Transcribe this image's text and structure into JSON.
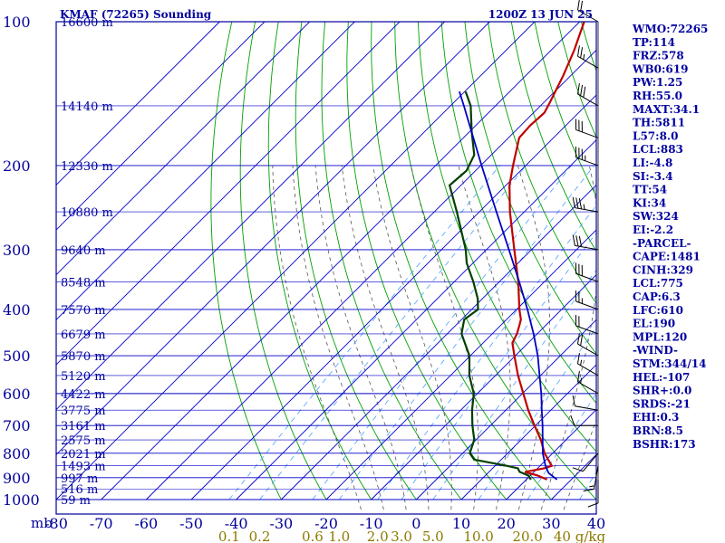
{
  "header": {
    "station": "KMAF (72265) Sounding",
    "time": "1200Z 13 JUN 25"
  },
  "colors": {
    "frame": "#00009c",
    "isobar": "#0000c8",
    "isotherm": "#0000c8",
    "dry_adiabat": "#00a000",
    "moist_adiabat": "#555555",
    "mixing_ratio": "#4aa0ff",
    "temperature": "#c00000",
    "dewpoint": "#004000",
    "parcel": "#0000c0",
    "text": "#0000a0",
    "mixing_label": "#8a7a00",
    "wind": "#000000"
  },
  "indices": [
    "WMO:72265",
    "TP:114",
    "FRZ:578",
    "WB0:619",
    "PW:1.25",
    "RH:55.0",
    "MAXT:34.1",
    "TH:5811",
    "L57:8.0",
    "LCL:883",
    "LI:-4.8",
    "SI:-3.4",
    "TT:54",
    "KI:34",
    "SW:324",
    "EI:-2.2",
    "-PARCEL-",
    "CAPE:1481",
    "CINH:329",
    "LCL:775",
    "CAP:6.3",
    "LFC:610",
    "EL:190",
    "MPL:120",
    "-WIND-",
    "STM:344/14",
    "HEL:-107",
    "SHR+:0.0",
    "SRDS:-21",
    "EHI:0.3",
    "BRN:8.5",
    "BSHR:173"
  ],
  "chart_data": {
    "type": "line",
    "title": "KMAF (72265) Sounding",
    "subtitle": "1200Z 13 JUN 25",
    "ylabel": "mb",
    "pressure_axis": {
      "scale": "log",
      "ylim": [
        1000,
        100
      ],
      "ticks": [
        100,
        200,
        300,
        400,
        500,
        600,
        700,
        800,
        900,
        1000
      ]
    },
    "temperature_axis": {
      "xlim": [
        -80,
        40
      ],
      "ticks": [
        -80,
        -70,
        -60,
        -50,
        -40,
        -30,
        -20,
        -10,
        0,
        10,
        20,
        30,
        40
      ]
    },
    "mixing_ratio_labels": [
      "0.1",
      "0.2",
      "0.6",
      "1.0",
      "2.0",
      "3.0",
      "5.0",
      "10.0",
      "20.0",
      "40 g/kg"
    ],
    "mixing_ratio_values": [
      0.1,
      0.2,
      0.6,
      1.0,
      2.0,
      3.0,
      5.0,
      10.0,
      20.0,
      40.0
    ],
    "height_labels": [
      {
        "p": 100,
        "text": "16600 m"
      },
      {
        "p": 150,
        "text": "14140 m"
      },
      {
        "p": 200,
        "text": "12330 m"
      },
      {
        "p": 250,
        "text": "10880 m"
      },
      {
        "p": 300,
        "text": "9640 m"
      },
      {
        "p": 350,
        "text": "8548 m"
      },
      {
        "p": 400,
        "text": "7570 m"
      },
      {
        "p": 450,
        "text": "6679 m"
      },
      {
        "p": 500,
        "text": "5870 m"
      },
      {
        "p": 550,
        "text": "5120 m"
      },
      {
        "p": 600,
        "text": "4422 m"
      },
      {
        "p": 650,
        "text": "3775 m"
      },
      {
        "p": 700,
        "text": "3161 m"
      },
      {
        "p": 750,
        "text": "2575 m"
      },
      {
        "p": 800,
        "text": "2021 m"
      },
      {
        "p": 850,
        "text": "1493 m"
      },
      {
        "p": 900,
        "text": "997 m"
      },
      {
        "p": 950,
        "text": "516 m"
      },
      {
        "p": 1000,
        "text": "59 m"
      }
    ],
    "dry_adiabats_C": [
      -30,
      -20,
      -10,
      0,
      10,
      20,
      30,
      40,
      50,
      60,
      70,
      80,
      90,
      100,
      110,
      120,
      130,
      140,
      150,
      160,
      170
    ],
    "moist_adiabats_C": [
      -10,
      -5,
      0,
      5,
      10,
      15,
      20,
      25,
      30,
      35
    ],
    "series": [
      {
        "name": "temperature",
        "points": [
          {
            "p": 908,
            "t": 24.6
          },
          {
            "p": 890,
            "t": 21.5
          },
          {
            "p": 875,
            "t": 18.0
          },
          {
            "p": 860,
            "t": 21.5
          },
          {
            "p": 850,
            "t": 22.6
          },
          {
            "p": 800,
            "t": 18.2
          },
          {
            "p": 750,
            "t": 14.4
          },
          {
            "p": 700,
            "t": 9.8
          },
          {
            "p": 650,
            "t": 5.0
          },
          {
            "p": 600,
            "t": 0.2
          },
          {
            "p": 550,
            "t": -5.0
          },
          {
            "p": 500,
            "t": -10.2
          },
          {
            "p": 470,
            "t": -13.5
          },
          {
            "p": 450,
            "t": -14.5
          },
          {
            "p": 435,
            "t": -15.6
          },
          {
            "p": 420,
            "t": -16.8
          },
          {
            "p": 400,
            "t": -19.4
          },
          {
            "p": 350,
            "t": -25.8
          },
          {
            "p": 300,
            "t": -33.8
          },
          {
            "p": 250,
            "t": -43.2
          },
          {
            "p": 220,
            "t": -49.2
          },
          {
            "p": 200,
            "t": -52.8
          },
          {
            "p": 175,
            "t": -57.6
          },
          {
            "p": 165,
            "t": -57.9
          },
          {
            "p": 155,
            "t": -57.6
          },
          {
            "p": 148,
            "t": -58.6
          },
          {
            "p": 130,
            "t": -61.6
          },
          {
            "p": 115,
            "t": -64.8
          },
          {
            "p": 100,
            "t": -69.0
          }
        ]
      },
      {
        "name": "dewpoint",
        "points": [
          {
            "p": 908,
            "t": 21.0
          },
          {
            "p": 890,
            "t": 19.5
          },
          {
            "p": 875,
            "t": 16.8
          },
          {
            "p": 860,
            "t": 15.6
          },
          {
            "p": 850,
            "t": 12.6
          },
          {
            "p": 825,
            "t": 4.0
          },
          {
            "p": 800,
            "t": 1.6
          },
          {
            "p": 750,
            "t": -0.4
          },
          {
            "p": 700,
            "t": -4.0
          },
          {
            "p": 650,
            "t": -7.5
          },
          {
            "p": 600,
            "t": -10.8
          },
          {
            "p": 550,
            "t": -15.8
          },
          {
            "p": 500,
            "t": -20.2
          },
          {
            "p": 450,
            "t": -26.8
          },
          {
            "p": 420,
            "t": -29.4
          },
          {
            "p": 400,
            "t": -28.6
          },
          {
            "p": 380,
            "t": -31.0
          },
          {
            "p": 350,
            "t": -35.8
          },
          {
            "p": 320,
            "t": -41.4
          },
          {
            "p": 300,
            "t": -44.6
          },
          {
            "p": 250,
            "t": -55.0
          },
          {
            "p": 220,
            "t": -62.5
          },
          {
            "p": 205,
            "t": -62.0
          },
          {
            "p": 190,
            "t": -63.8
          },
          {
            "p": 170,
            "t": -69.5
          },
          {
            "p": 150,
            "t": -75.5
          },
          {
            "p": 140,
            "t": -79.8
          }
        ]
      },
      {
        "name": "parcel",
        "points": [
          {
            "p": 908,
            "t": 26.8
          },
          {
            "p": 880,
            "t": 23.5
          },
          {
            "p": 850,
            "t": 21.2
          },
          {
            "p": 800,
            "t": 17.8
          },
          {
            "p": 750,
            "t": 14.8
          },
          {
            "p": 700,
            "t": 11.6
          },
          {
            "p": 650,
            "t": 8.0
          },
          {
            "p": 600,
            "t": 4.2
          },
          {
            "p": 550,
            "t": -0.2
          },
          {
            "p": 500,
            "t": -5.0
          },
          {
            "p": 450,
            "t": -10.8
          },
          {
            "p": 400,
            "t": -17.6
          },
          {
            "p": 350,
            "t": -25.6
          },
          {
            "p": 300,
            "t": -35.0
          },
          {
            "p": 250,
            "t": -46.2
          },
          {
            "p": 200,
            "t": -59.8
          },
          {
            "p": 175,
            "t": -67.8
          },
          {
            "p": 150,
            "t": -77.0
          },
          {
            "p": 140,
            "t": -81.2
          }
        ]
      }
    ],
    "wind_barbs": [
      {
        "p": 908,
        "dir": 180,
        "kt": 10
      },
      {
        "p": 850,
        "dir": 190,
        "kt": 15
      },
      {
        "p": 800,
        "dir": 220,
        "kt": 10
      },
      {
        "p": 700,
        "dir": 270,
        "kt": 10
      },
      {
        "p": 650,
        "dir": 280,
        "kt": 10
      },
      {
        "p": 600,
        "dir": 300,
        "kt": 15
      },
      {
        "p": 550,
        "dir": 300,
        "kt": 15
      },
      {
        "p": 500,
        "dir": 300,
        "kt": 20
      },
      {
        "p": 450,
        "dir": 290,
        "kt": 20
      },
      {
        "p": 400,
        "dir": 290,
        "kt": 25
      },
      {
        "p": 350,
        "dir": 290,
        "kt": 30
      },
      {
        "p": 300,
        "dir": 280,
        "kt": 30
      },
      {
        "p": 250,
        "dir": 280,
        "kt": 35
      },
      {
        "p": 200,
        "dir": 290,
        "kt": 35
      },
      {
        "p": 175,
        "dir": 290,
        "kt": 30
      },
      {
        "p": 150,
        "dir": 300,
        "kt": 30
      },
      {
        "p": 125,
        "dir": 300,
        "kt": 25
      },
      {
        "p": 100,
        "dir": 300,
        "kt": 20
      }
    ]
  }
}
